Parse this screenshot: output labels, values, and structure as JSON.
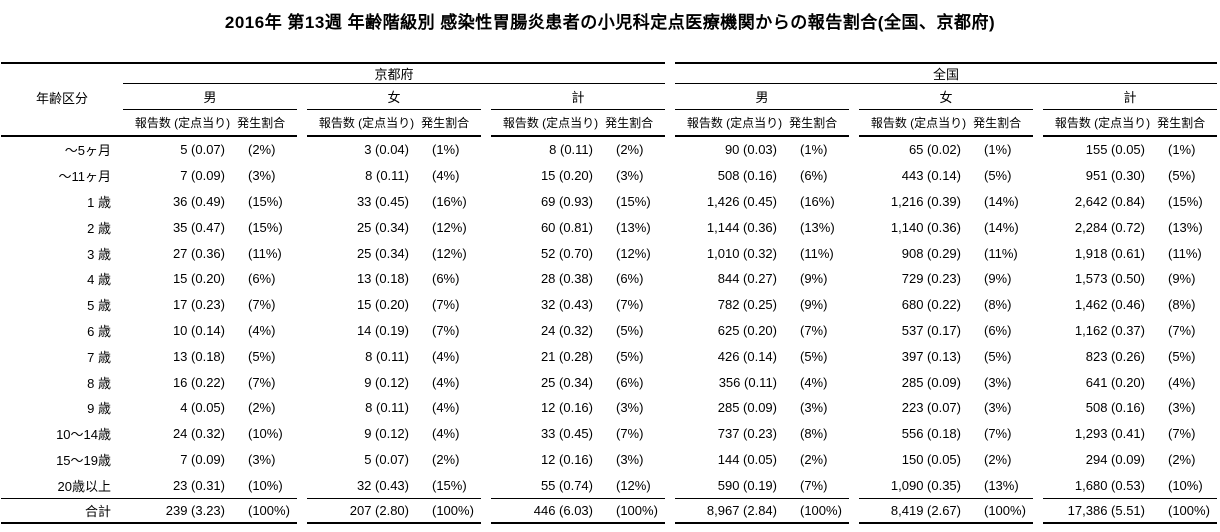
{
  "title": "2016年 第13週 年齢階級別 感染性胃腸炎患者の小児科定点医療機関からの報告割合(全国、京都府)",
  "table": {
    "age_column_header": "年齢区分",
    "regions": [
      "京都府",
      "全国"
    ],
    "sex_headers": [
      "男",
      "女",
      "計"
    ],
    "metric_reports_header": "報告数 (定点当り)",
    "metric_rate_header": "発生割合",
    "columns_per_row": [
      "京都府男-報告数",
      "京都府男-発生割合",
      "京都府女-報告数",
      "京都府女-発生割合",
      "京都府計-報告数",
      "京都府計-発生割合",
      "全国男-報告数",
      "全国男-発生割合",
      "全国女-報告数",
      "全国女-発生割合",
      "全国計-報告数",
      "全国計-発生割合"
    ],
    "rows": [
      {
        "age": "〜5ヶ月",
        "total": false,
        "cells": [
          "5 (0.07)",
          "(2%)",
          "3 (0.04)",
          "(1%)",
          "8 (0.11)",
          "(2%)",
          "90 (0.03)",
          "(1%)",
          "65 (0.02)",
          "(1%)",
          "155 (0.05)",
          "(1%)"
        ]
      },
      {
        "age": "〜11ヶ月",
        "total": false,
        "cells": [
          "7 (0.09)",
          "(3%)",
          "8 (0.11)",
          "(4%)",
          "15 (0.20)",
          "(3%)",
          "508 (0.16)",
          "(6%)",
          "443 (0.14)",
          "(5%)",
          "951 (0.30)",
          "(5%)"
        ]
      },
      {
        "age": "1 歳",
        "total": false,
        "cells": [
          "36 (0.49)",
          "(15%)",
          "33 (0.45)",
          "(16%)",
          "69 (0.93)",
          "(15%)",
          "1,426 (0.45)",
          "(16%)",
          "1,216 (0.39)",
          "(14%)",
          "2,642 (0.84)",
          "(15%)"
        ]
      },
      {
        "age": "2 歳",
        "total": false,
        "cells": [
          "35 (0.47)",
          "(15%)",
          "25 (0.34)",
          "(12%)",
          "60 (0.81)",
          "(13%)",
          "1,144 (0.36)",
          "(13%)",
          "1,140 (0.36)",
          "(14%)",
          "2,284 (0.72)",
          "(13%)"
        ]
      },
      {
        "age": "3 歳",
        "total": false,
        "cells": [
          "27 (0.36)",
          "(11%)",
          "25 (0.34)",
          "(12%)",
          "52 (0.70)",
          "(12%)",
          "1,010 (0.32)",
          "(11%)",
          "908 (0.29)",
          "(11%)",
          "1,918 (0.61)",
          "(11%)"
        ]
      },
      {
        "age": "4 歳",
        "total": false,
        "cells": [
          "15 (0.20)",
          "(6%)",
          "13 (0.18)",
          "(6%)",
          "28 (0.38)",
          "(6%)",
          "844 (0.27)",
          "(9%)",
          "729 (0.23)",
          "(9%)",
          "1,573 (0.50)",
          "(9%)"
        ]
      },
      {
        "age": "5 歳",
        "total": false,
        "cells": [
          "17 (0.23)",
          "(7%)",
          "15 (0.20)",
          "(7%)",
          "32 (0.43)",
          "(7%)",
          "782 (0.25)",
          "(9%)",
          "680 (0.22)",
          "(8%)",
          "1,462 (0.46)",
          "(8%)"
        ]
      },
      {
        "age": "6 歳",
        "total": false,
        "cells": [
          "10 (0.14)",
          "(4%)",
          "14 (0.19)",
          "(7%)",
          "24 (0.32)",
          "(5%)",
          "625 (0.20)",
          "(7%)",
          "537 (0.17)",
          "(6%)",
          "1,162 (0.37)",
          "(7%)"
        ]
      },
      {
        "age": "7 歳",
        "total": false,
        "cells": [
          "13 (0.18)",
          "(5%)",
          "8 (0.11)",
          "(4%)",
          "21 (0.28)",
          "(5%)",
          "426 (0.14)",
          "(5%)",
          "397 (0.13)",
          "(5%)",
          "823 (0.26)",
          "(5%)"
        ]
      },
      {
        "age": "8 歳",
        "total": false,
        "cells": [
          "16 (0.22)",
          "(7%)",
          "9 (0.12)",
          "(4%)",
          "25 (0.34)",
          "(6%)",
          "356 (0.11)",
          "(4%)",
          "285 (0.09)",
          "(3%)",
          "641 (0.20)",
          "(4%)"
        ]
      },
      {
        "age": "9 歳",
        "total": false,
        "cells": [
          "4 (0.05)",
          "(2%)",
          "8 (0.11)",
          "(4%)",
          "12 (0.16)",
          "(3%)",
          "285 (0.09)",
          "(3%)",
          "223 (0.07)",
          "(3%)",
          "508 (0.16)",
          "(3%)"
        ]
      },
      {
        "age": "10〜14歳",
        "total": false,
        "cells": [
          "24 (0.32)",
          "(10%)",
          "9 (0.12)",
          "(4%)",
          "33 (0.45)",
          "(7%)",
          "737 (0.23)",
          "(8%)",
          "556 (0.18)",
          "(7%)",
          "1,293 (0.41)",
          "(7%)"
        ]
      },
      {
        "age": "15〜19歳",
        "total": false,
        "cells": [
          "7 (0.09)",
          "(3%)",
          "5 (0.07)",
          "(2%)",
          "12 (0.16)",
          "(3%)",
          "144 (0.05)",
          "(2%)",
          "150 (0.05)",
          "(2%)",
          "294 (0.09)",
          "(2%)"
        ]
      },
      {
        "age": "20歳以上",
        "total": false,
        "cells": [
          "23 (0.31)",
          "(10%)",
          "32 (0.43)",
          "(15%)",
          "55 (0.74)",
          "(12%)",
          "590 (0.19)",
          "(7%)",
          "1,090 (0.35)",
          "(13%)",
          "1,680 (0.53)",
          "(10%)"
        ]
      },
      {
        "age": "合計",
        "total": true,
        "cells": [
          "239 (3.23)",
          "(100%)",
          "207 (2.80)",
          "(100%)",
          "446 (6.03)",
          "(100%)",
          "8,967 (2.84)",
          "(100%)",
          "8,419 (2.67)",
          "(100%)",
          "17,386 (5.51)",
          "(100%)"
        ]
      }
    ]
  }
}
